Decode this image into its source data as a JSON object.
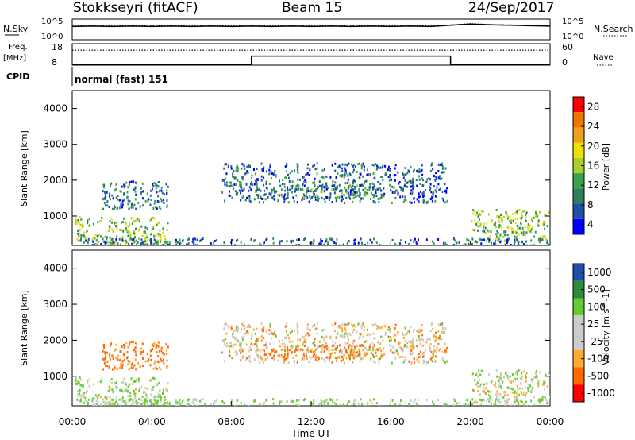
{
  "header": {
    "title_left": "Stokkseyri (fitACF)",
    "title_center": "Beam 15",
    "title_right": "24/Sep/2017"
  },
  "noise_panel": {
    "left_label": "N.Sky",
    "right_label": "N.Search",
    "left_ticks": [
      "10^5",
      "10^0"
    ],
    "right_ticks": [
      "10^5",
      "10^0"
    ]
  },
  "freq_panel": {
    "left_label_top": "Freq.",
    "left_label_bottom": "[MHz]",
    "right_label": "Nave",
    "left_ticks": [
      "18",
      "8"
    ],
    "right_ticks": [
      "60",
      "0"
    ]
  },
  "cpid_panel": {
    "label": "CPID",
    "text": "normal (fast) 151"
  },
  "colors": {
    "power_scale": [
      "#0000ff",
      "#1f4fa8",
      "#2f7f5f",
      "#3aa34a",
      "#a8cf2a",
      "#f0e000",
      "#f0a020",
      "#ee7700",
      "#ff0000"
    ],
    "velocity_scale": [
      "#ff0000",
      "#ff6a00",
      "#ffaa33",
      "#cccccc",
      "#cccccc",
      "#66cc33",
      "#2e8b3c",
      "#1f4fa8"
    ]
  },
  "chart_data": [
    {
      "type": "line",
      "panel": "noise",
      "x_range_hours": [
        0,
        24
      ],
      "series": [
        {
          "name": "N.Sky",
          "style": "solid",
          "values_log10": [
            3.2,
            3.3,
            3.2,
            3.3,
            3.2,
            3.3,
            3.2,
            3.3,
            3.2,
            3.3,
            3.2,
            3.3,
            3.2,
            3.3,
            3.2,
            3.3,
            3.2,
            3.3,
            3.2,
            3.5,
            3.8,
            3.6,
            3.5,
            3.4,
            3.3
          ]
        },
        {
          "name": "N.Search",
          "style": "dotted",
          "values_log10": [
            3.4,
            3.4,
            3.4,
            3.4,
            3.4,
            3.4,
            3.4,
            3.4,
            3.4,
            3.4,
            3.4,
            3.4,
            3.4,
            3.4,
            3.4,
            3.4,
            3.4,
            3.4,
            3.4,
            3.6,
            3.9,
            3.7,
            3.6,
            3.5,
            3.5
          ]
        }
      ],
      "ylim_log10": [
        0,
        5
      ]
    },
    {
      "type": "line",
      "panel": "frequency",
      "x_range_hours": [
        0,
        24
      ],
      "series": [
        {
          "name": "Freq.",
          "style": "solid",
          "step_points": [
            [
              0,
              8.3
            ],
            [
              9.0,
              8.3
            ],
            [
              9.0,
              12.2
            ],
            [
              19.0,
              12.2
            ],
            [
              19.0,
              8.3
            ],
            [
              24,
              8.3
            ]
          ],
          "ylim": [
            8,
            18
          ]
        },
        {
          "name": "Nave",
          "style": "dotted",
          "step_points": [
            [
              0,
              42
            ],
            [
              24,
              42
            ]
          ],
          "ylim": [
            0,
            60
          ]
        }
      ]
    },
    {
      "type": "heatmap",
      "panel": "power",
      "title": "",
      "xlabel": "",
      "ylabel": "Slant Range [km]",
      "x_range_hours": [
        0,
        24
      ],
      "ylim": [
        180,
        4500
      ],
      "yticks": [
        1000,
        2000,
        3000,
        4000
      ],
      "colorbar_label": "Power [dB]",
      "colorbar_ticks": [
        "28",
        "24",
        "20",
        "16",
        "12",
        "8",
        "4"
      ],
      "echo_regions": [
        {
          "t_start": 0.1,
          "t_end": 4.8,
          "r_start": 200,
          "r_end": 1000,
          "level_db": 14
        },
        {
          "t_start": 1.5,
          "t_end": 4.8,
          "r_start": 1200,
          "r_end": 2000,
          "level_db": 9
        },
        {
          "t_start": 7.5,
          "t_end": 18.8,
          "r_start": 1400,
          "r_end": 2500,
          "level_db": 6
        },
        {
          "t_start": 9.5,
          "t_end": 15.5,
          "r_start": 1500,
          "r_end": 1900,
          "level_db": 11
        },
        {
          "t_start": 20.0,
          "t_end": 24.0,
          "r_start": 300,
          "r_end": 1200,
          "level_db": 15
        },
        {
          "t_start": 0.1,
          "t_end": 24.0,
          "r_start": 200,
          "r_end": 400,
          "level_db": 8
        }
      ]
    },
    {
      "type": "heatmap",
      "panel": "velocity",
      "title": "",
      "xlabel": "Time UT",
      "ylabel": "Slant Range [km]",
      "x_range_hours": [
        0,
        24
      ],
      "ylim": [
        180,
        4500
      ],
      "yticks": [
        1000,
        2000,
        3000,
        4000
      ],
      "xticks": [
        "00:00",
        "04:00",
        "08:00",
        "12:00",
        "16:00",
        "20:00",
        "00:00"
      ],
      "colorbar_label": "Velocity [m s^-1]",
      "colorbar_ticks": [
        "1000",
        "500",
        "100",
        "25",
        "-25",
        "-100",
        "-500",
        "-1000"
      ],
      "echo_regions": [
        {
          "t_start": 0.1,
          "t_end": 4.8,
          "r_start": 200,
          "r_end": 1000,
          "velocity": 100
        },
        {
          "t_start": 1.5,
          "t_end": 4.8,
          "r_start": 1200,
          "r_end": 2000,
          "velocity": -200
        },
        {
          "t_start": 7.5,
          "t_end": 18.8,
          "r_start": 1400,
          "r_end": 2500,
          "velocity": 0
        },
        {
          "t_start": 9.5,
          "t_end": 15.5,
          "r_start": 1500,
          "r_end": 1900,
          "velocity": -150
        },
        {
          "t_start": 20.0,
          "t_end": 24.0,
          "r_start": 300,
          "r_end": 1200,
          "velocity": 50
        },
        {
          "t_start": 0.1,
          "t_end": 24.0,
          "r_start": 200,
          "r_end": 400,
          "velocity": 120
        }
      ]
    }
  ]
}
